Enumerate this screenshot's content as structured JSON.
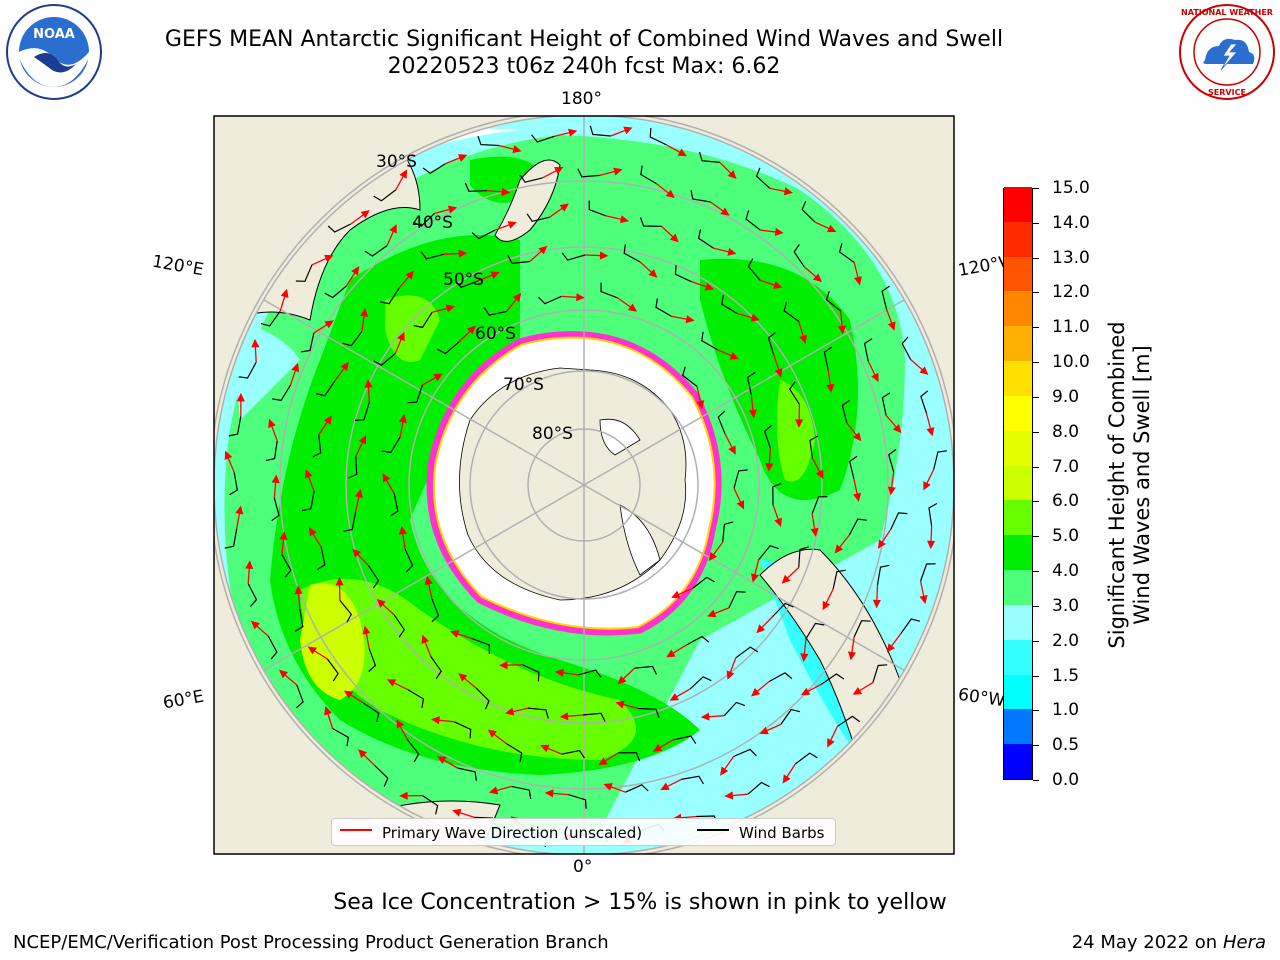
{
  "header": {
    "title_line1": "GEFS MEAN Antarctic Significant Height of Combined Wind Waves and Swell",
    "title_line2": "20220523 t06z 240h fcst   Max: 6.62"
  },
  "logos": {
    "left": "NOAA",
    "right": "NATIONAL WEATHER SERVICE"
  },
  "map": {
    "longitude_labels": {
      "top": "180°",
      "bottom": "0°",
      "left_upper": "120°E",
      "left_lower": "60°E",
      "right_upper": "120°W",
      "right_lower": "60°W"
    },
    "latitude_labels": [
      "30°S",
      "40°S",
      "50°S",
      "60°S",
      "70°S",
      "80°S"
    ],
    "colors": {
      "land": "#efecdc",
      "ocean_no_data": "#ffffff",
      "grid": "#b0b0b0",
      "ice_edge": "#ff33cc",
      "ice_inner": "#ffd700",
      "arrow": "#ff0000",
      "barb": "#000000"
    }
  },
  "colorbar": {
    "title_line1": "Significant Height of Combined",
    "title_line2": "Wind Waves and Swell [m]",
    "levels": [
      0.0,
      0.5,
      1.0,
      1.5,
      2.0,
      3.0,
      4.0,
      5.0,
      6.0,
      7.0,
      8.0,
      9.0,
      10.0,
      11.0,
      12.0,
      13.0,
      14.0,
      15.0
    ],
    "tick_labels": [
      "0.0",
      "0.5",
      "1.0",
      "1.5",
      "2.0",
      "3.0",
      "4.0",
      "5.0",
      "6.0",
      "7.0",
      "8.0",
      "9.0",
      "10.0",
      "11.0",
      "12.0",
      "13.0",
      "14.0",
      "15.0"
    ],
    "colors": [
      "#0000ff",
      "#0077ff",
      "#00ffff",
      "#33ffff",
      "#99ffff",
      "#4dff7a",
      "#00ee00",
      "#66ff00",
      "#ccff00",
      "#e6ff00",
      "#ffff00",
      "#ffe000",
      "#ffb000",
      "#ff8800",
      "#ff5500",
      "#ff2a00",
      "#ff0000"
    ]
  },
  "legend": {
    "wave_label": "Primary Wave Direction (unscaled)",
    "barb_label": "Wind Barbs"
  },
  "caption": "Sea Ice Concentration > 15% is shown in pink to yellow",
  "footer": {
    "left": "NCEP/EMC/Verification Post Processing Product Generation Branch",
    "right_date": "24 May 2022 on",
    "right_host": "Hera"
  }
}
